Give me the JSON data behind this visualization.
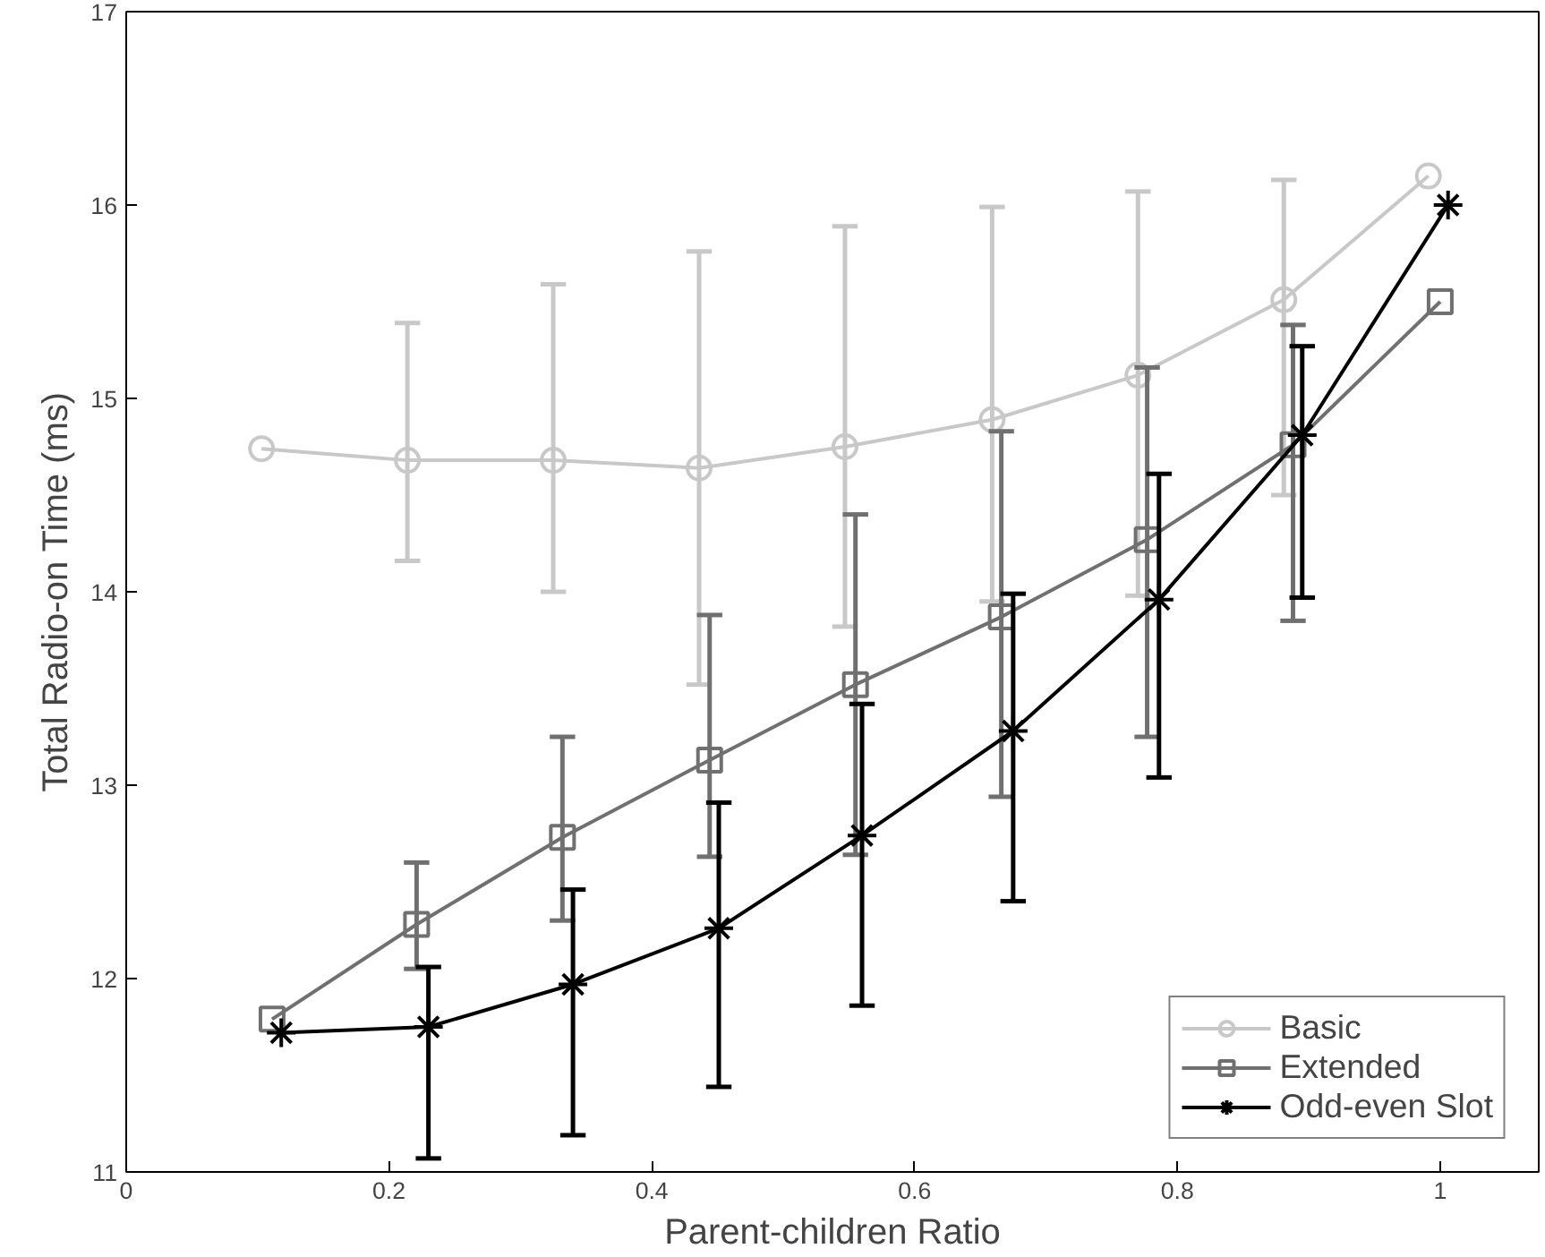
{
  "chart_data": {
    "type": "line",
    "xlabel": "Parent-children Ratio",
    "ylabel": "Total Radio-on Time (ms)",
    "xlim": [
      0,
      1.075
    ],
    "ylim": [
      11,
      17
    ],
    "xticks": [
      0,
      0.2,
      0.4,
      0.6,
      0.8,
      1
    ],
    "yticks": [
      11,
      12,
      13,
      14,
      15,
      16,
      17
    ],
    "grid": false,
    "legend": "bottom right",
    "line_style": "solid",
    "series": [
      {
        "name": "Basic",
        "color": "#c8c8c8",
        "marker": "circle",
        "x": [
          0.103,
          0.214,
          0.325,
          0.436,
          0.547,
          0.659,
          0.77,
          0.881,
          0.991
        ],
        "values": [
          14.74,
          14.68,
          14.68,
          14.64,
          14.75,
          14.89,
          15.12,
          15.51,
          16.15
        ],
        "errors": [
          null,
          [
            14.16,
            15.39
          ],
          [
            14.0,
            15.59
          ],
          [
            13.52,
            15.76
          ],
          [
            13.82,
            15.89
          ],
          [
            13.95,
            15.99
          ],
          [
            13.98,
            16.07
          ],
          [
            14.5,
            16.13
          ],
          null
        ]
      },
      {
        "name": "Extended",
        "color": "#707070",
        "marker": "square",
        "x": [
          0.111,
          0.221,
          0.332,
          0.444,
          0.555,
          0.666,
          0.777,
          0.888,
          1.0
        ],
        "values": [
          11.79,
          12.28,
          12.73,
          13.13,
          13.52,
          13.87,
          14.27,
          14.76,
          15.5
        ],
        "errors": [
          null,
          [
            12.05,
            12.6
          ],
          [
            12.3,
            13.25
          ],
          [
            12.63,
            13.88
          ],
          [
            12.64,
            14.4
          ],
          [
            12.94,
            14.83
          ],
          [
            13.25,
            15.16
          ],
          [
            13.85,
            15.38
          ],
          null
        ]
      },
      {
        "name": "Odd-even Slot",
        "color": "#000000",
        "marker": "cross",
        "x": [
          0.118,
          0.23,
          0.34,
          0.451,
          0.56,
          0.675,
          0.786,
          0.895,
          1.006
        ],
        "values": [
          11.72,
          11.75,
          11.97,
          12.26,
          12.74,
          13.28,
          13.96,
          14.81,
          16.0
        ],
        "errors": [
          null,
          [
            11.07,
            12.06
          ],
          [
            11.19,
            12.46
          ],
          [
            11.44,
            12.91
          ],
          [
            11.86,
            13.42
          ],
          [
            12.4,
            13.99
          ],
          [
            13.04,
            14.61
          ],
          [
            13.97,
            15.27
          ],
          null
        ]
      }
    ]
  }
}
